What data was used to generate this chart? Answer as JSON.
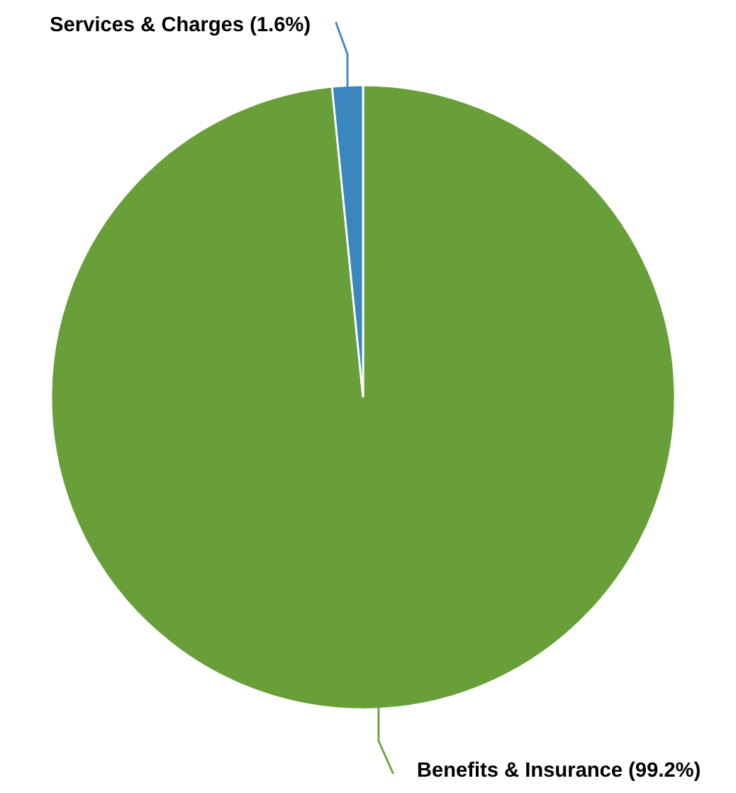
{
  "chart_data": {
    "type": "pie",
    "categories": [
      "Benefits & Insurance",
      "Services & Charges"
    ],
    "values": [
      99.2,
      1.6
    ],
    "colors": [
      "#689f38",
      "#3a87c0"
    ],
    "value_labels": [
      "(99.2%)",
      "(1.6%)"
    ]
  }
}
